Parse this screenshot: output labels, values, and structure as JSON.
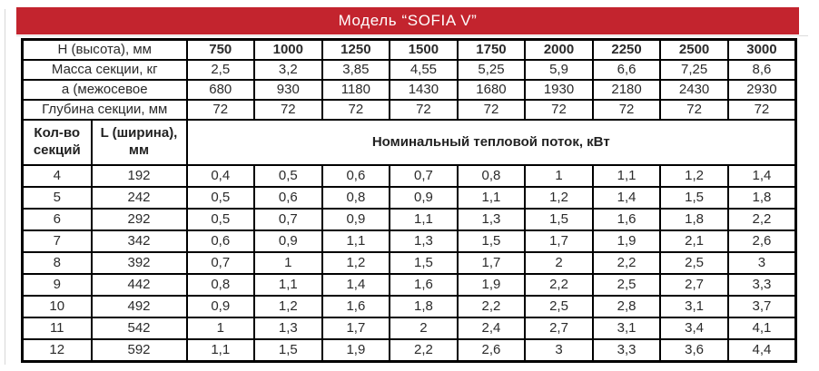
{
  "title": "Модель “SOFIA V”",
  "colors": {
    "banner_bg": "#c3242e",
    "banner_text": "#ffffff",
    "table_border": "#000000",
    "text": "#2b2b2b"
  },
  "table": {
    "spec_rows": [
      {
        "label": "Н (высота), мм",
        "values": [
          "750",
          "1000",
          "1250",
          "1500",
          "1750",
          "2000",
          "2250",
          "2500",
          "3000"
        ]
      },
      {
        "label": "Масса секции, кг",
        "values": [
          "2,5",
          "3,2",
          "3,85",
          "4,55",
          "5,25",
          "5,9",
          "6,6",
          "7,25",
          "8,6"
        ]
      },
      {
        "label": "а (межосевое",
        "values": [
          "680",
          "930",
          "1180",
          "1430",
          "1680",
          "1930",
          "2180",
          "2430",
          "2930"
        ]
      },
      {
        "label": "Глубина секции, мм",
        "values": [
          "72",
          "72",
          "72",
          "72",
          "72",
          "72",
          "72",
          "72",
          "72"
        ]
      }
    ],
    "section_header": {
      "count_label": "Кол-во секций",
      "width_label": "L (ширина), мм",
      "flow_label": "Номинальный тепловой поток, кВт"
    },
    "section_rows": [
      {
        "count": "4",
        "width": "192",
        "values": [
          "0,4",
          "0,5",
          "0,6",
          "0,7",
          "0,8",
          "1",
          "1,1",
          "1,2",
          "1,4"
        ]
      },
      {
        "count": "5",
        "width": "242",
        "values": [
          "0,5",
          "0,6",
          "0,8",
          "0,9",
          "1,1",
          "1,2",
          "1,4",
          "1,5",
          "1,8"
        ]
      },
      {
        "count": "6",
        "width": "292",
        "values": [
          "0,5",
          "0,7",
          "0,9",
          "1,1",
          "1,3",
          "1,5",
          "1,6",
          "1,8",
          "2,2"
        ]
      },
      {
        "count": "7",
        "width": "342",
        "values": [
          "0,6",
          "0,9",
          "1,1",
          "1,3",
          "1,5",
          "1,7",
          "1,9",
          "2,1",
          "2,6"
        ]
      },
      {
        "count": "8",
        "width": "392",
        "values": [
          "0,7",
          "1",
          "1,2",
          "1,5",
          "1,7",
          "2",
          "2,2",
          "2,5",
          "3"
        ]
      },
      {
        "count": "9",
        "width": "442",
        "values": [
          "0,8",
          "1,1",
          "1,4",
          "1,6",
          "1,9",
          "2,2",
          "2,5",
          "2,7",
          "3,3"
        ]
      },
      {
        "count": "10",
        "width": "492",
        "values": [
          "0,9",
          "1,2",
          "1,6",
          "1,8",
          "2,2",
          "2,5",
          "2,8",
          "3,1",
          "3,7"
        ]
      },
      {
        "count": "11",
        "width": "542",
        "values": [
          "1",
          "1,3",
          "1,7",
          "2",
          "2,4",
          "2,7",
          "3,1",
          "3,4",
          "4,1"
        ]
      },
      {
        "count": "12",
        "width": "592",
        "values": [
          "1,1",
          "1,5",
          "1,9",
          "2,2",
          "2,6",
          "3",
          "3,3",
          "3,6",
          "4,4"
        ]
      }
    ]
  }
}
